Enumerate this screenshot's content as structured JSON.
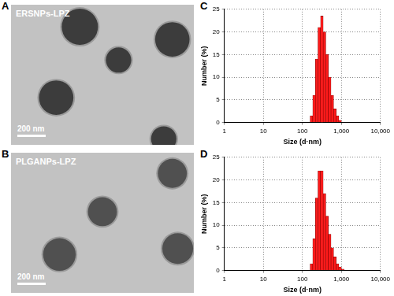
{
  "panels": [
    {
      "label": "A",
      "title": "ERSNPs-LPZ",
      "scale_bar": "200 nm"
    },
    {
      "label": "B",
      "title": "PLGANPs-LPZ",
      "scale_bar": "200 nm"
    }
  ],
  "chart_data": [
    {
      "panel": "C",
      "type": "histogram",
      "x_label": "Size (d·nm)",
      "y_label": "Number (%)",
      "bins": [
        158,
        185,
        215,
        251,
        293,
        341,
        398,
        464,
        541,
        631,
        736,
        858,
        1000
      ],
      "counts": [
        1.5,
        6,
        14,
        21,
        23.5,
        20,
        15,
        10,
        6,
        3,
        1.5,
        0.5
      ],
      "color": "#ff1a1a",
      "log": "x",
      "grid": true,
      "xlim": [
        1,
        10000
      ],
      "xticks": [
        1,
        10,
        100,
        {
          "value": 1000,
          "label": "1,000"
        },
        {
          "value": 10000,
          "label": "10,000"
        }
      ],
      "ylim": [
        0,
        25
      ],
      "yticks": [
        0,
        5,
        10,
        15,
        20,
        25
      ]
    },
    {
      "panel": "D",
      "type": "histogram",
      "x_label": "Size (d·nm)",
      "y_label": "Number (%)",
      "bins": [
        158,
        185,
        215,
        251,
        293,
        341,
        398,
        464,
        541,
        631,
        736,
        858,
        1000,
        1166
      ],
      "counts": [
        1.5,
        7,
        16,
        22,
        22,
        17,
        12,
        8,
        5,
        3,
        1.5,
        0.8,
        0.3
      ],
      "color": "#ff1a1a",
      "log": "x",
      "grid": true,
      "xlim": [
        1,
        10000
      ],
      "xticks": [
        1,
        10,
        100,
        {
          "value": 1000,
          "label": "1,000"
        },
        {
          "value": 10000,
          "label": "10,000"
        }
      ],
      "ylim": [
        0,
        25
      ],
      "yticks": [
        0,
        5,
        10,
        15,
        20,
        25
      ]
    }
  ]
}
